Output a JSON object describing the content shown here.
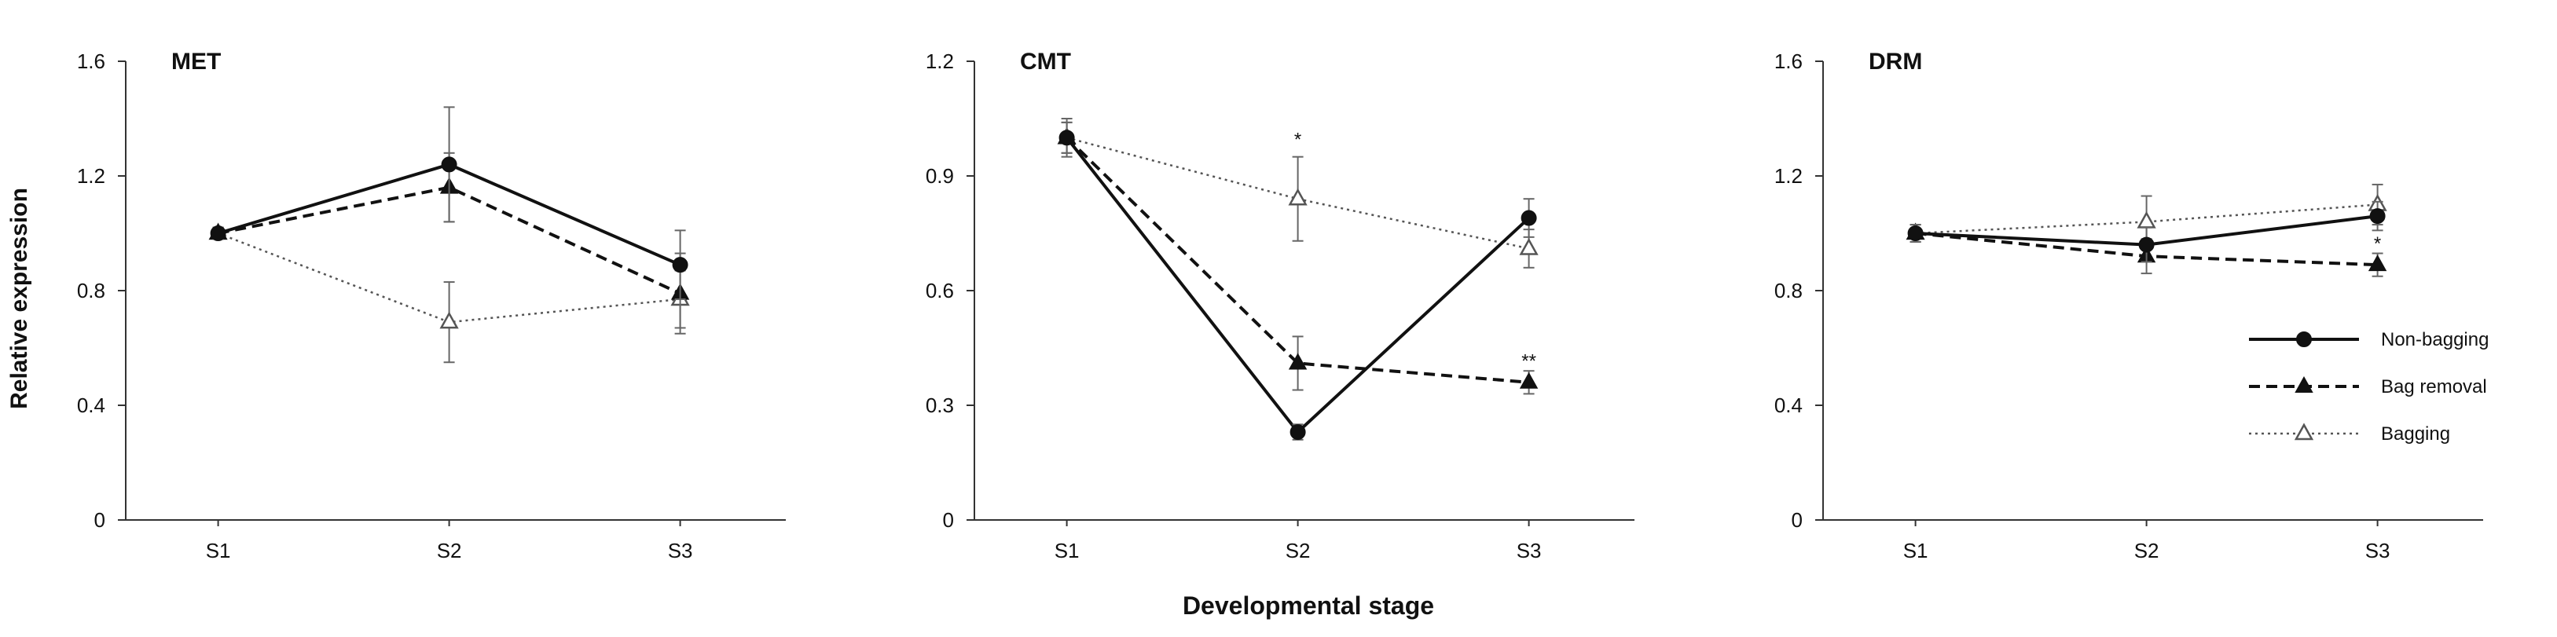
{
  "chart_data": {
    "type": "line",
    "xlabel": "Developmental stage",
    "ylabel": "Relative expression",
    "categories": [
      "S1",
      "S2",
      "S3"
    ],
    "legend": {
      "placement": "right of third panel",
      "entries": [
        "Non-bagging",
        "Bag removal",
        "Bagging"
      ]
    },
    "series_styles": {
      "Non-bagging": {
        "line": "solid",
        "marker": "filled-circle",
        "color": "#111111"
      },
      "Bag removal": {
        "line": "dashed",
        "marker": "filled-triangle",
        "color": "#111111"
      },
      "Bagging": {
        "line": "dotted",
        "marker": "open-triangle",
        "color": "#555555"
      }
    },
    "panels": [
      {
        "title": "MET",
        "ylim": [
          0,
          1.6
        ],
        "yticks": [
          0,
          0.4,
          0.8,
          1.2,
          1.6
        ],
        "ytick_labels": [
          "0",
          "0.4",
          "0.8",
          "1.2",
          "1.6"
        ],
        "series": [
          {
            "name": "Non-bagging",
            "values": [
              1.0,
              1.24,
              0.89
            ],
            "errors": [
              0.02,
              0.2,
              0.12
            ]
          },
          {
            "name": "Bag removal",
            "values": [
              1.0,
              1.16,
              0.79
            ],
            "errors": [
              0.02,
              0.12,
              0.14
            ]
          },
          {
            "name": "Bagging",
            "values": [
              1.0,
              0.69,
              0.77
            ],
            "errors": [
              0.02,
              0.14,
              0.1
            ]
          }
        ],
        "annotations": []
      },
      {
        "title": "CMT",
        "ylim": [
          0,
          1.2
        ],
        "yticks": [
          0,
          0.3,
          0.6,
          0.9,
          1.2
        ],
        "ytick_labels": [
          "0",
          "0.3",
          "0.6",
          "0.9",
          "1.2"
        ],
        "series": [
          {
            "name": "Non-bagging",
            "values": [
              1.0,
              0.23,
              0.79
            ],
            "errors": [
              0.04,
              0.02,
              0.05
            ]
          },
          {
            "name": "Bag removal",
            "values": [
              1.0,
              0.41,
              0.36
            ],
            "errors": [
              0.04,
              0.07,
              0.03
            ]
          },
          {
            "name": "Bagging",
            "values": [
              1.0,
              0.84,
              0.71
            ],
            "errors": [
              0.05,
              0.11,
              0.05
            ]
          }
        ],
        "annotations": [
          {
            "text": "*",
            "category": "S2",
            "y": 1.0
          },
          {
            "text": "**",
            "category": "S3",
            "y": 0.42
          }
        ]
      },
      {
        "title": "DRM",
        "ylim": [
          0,
          1.6
        ],
        "yticks": [
          0,
          0.4,
          0.8,
          1.2,
          1.6
        ],
        "ytick_labels": [
          "0",
          "0.4",
          "0.8",
          "1.2",
          "1.6"
        ],
        "series": [
          {
            "name": "Non-bagging",
            "values": [
              1.0,
              0.96,
              1.06
            ],
            "errors": [
              0.03,
              0.06,
              0.05
            ]
          },
          {
            "name": "Bag removal",
            "values": [
              1.0,
              0.92,
              0.89
            ],
            "errors": [
              0.03,
              0.06,
              0.04
            ]
          },
          {
            "name": "Bagging",
            "values": [
              1.0,
              1.04,
              1.1
            ],
            "errors": [
              0.03,
              0.09,
              0.07
            ]
          }
        ],
        "annotations": [
          {
            "text": "*",
            "category": "S3",
            "y": 0.97
          }
        ]
      }
    ]
  }
}
